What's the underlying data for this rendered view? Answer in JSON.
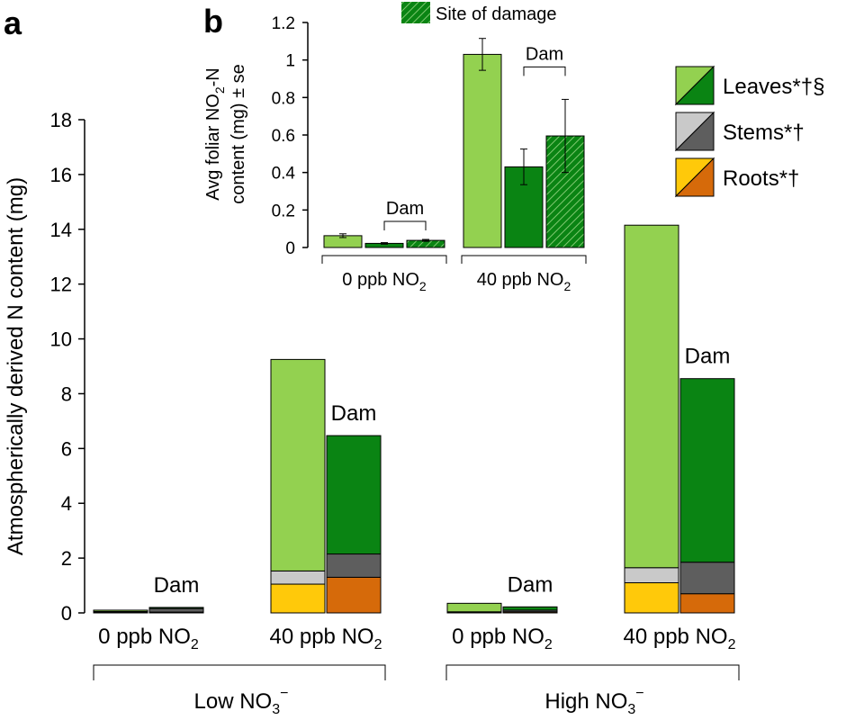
{
  "panel_a_label": "a",
  "panel_b_label": "b",
  "colors": {
    "leaves_undamaged": "#93d150",
    "leaves_damaged": "#0a8413",
    "stems_undamaged": "#c9c9c9",
    "stems_damaged": "#5e5e5e",
    "roots_undamaged": "#ffc90a",
    "roots_damaged": "#d66a0a"
  },
  "legend": {
    "leaves": "Leaves*†§",
    "stems": "Stems*†",
    "roots": "Roots*†",
    "site_of_damage": "Site of damage"
  },
  "chart_data": [
    {
      "id": "a",
      "type": "bar",
      "stacked": true,
      "ylabel": "Atmospherically derived N content (mg)",
      "ylim": [
        0,
        18
      ],
      "yticks": [
        0,
        2,
        4,
        6,
        8,
        10,
        12,
        14,
        16,
        18
      ],
      "stack_order": [
        "roots",
        "stems",
        "leaves"
      ],
      "groups": [
        {
          "label": "0 ppb NO",
          "sub": "2",
          "nitrate": "Low",
          "bars": [
            {
              "damaged": false,
              "roots": 0.02,
              "stems": 0.03,
              "leaves": 0.05
            },
            {
              "damaged": true,
              "roots": 0.03,
              "stems": 0.13,
              "leaves": 0.04,
              "annotation": "Dam"
            }
          ]
        },
        {
          "label": "40 ppb NO",
          "sub": "2",
          "nitrate": "Low",
          "bars": [
            {
              "damaged": false,
              "roots": 1.05,
              "stems": 0.48,
              "leaves": 7.72
            },
            {
              "damaged": true,
              "roots": 1.3,
              "stems": 0.85,
              "leaves": 4.32,
              "annotation": "Dam"
            }
          ]
        },
        {
          "label": "0 ppb NO",
          "sub": "2",
          "nitrate": "High",
          "bars": [
            {
              "damaged": false,
              "roots": 0.02,
              "stems": 0.02,
              "leaves": 0.31
            },
            {
              "damaged": true,
              "roots": 0.04,
              "stems": 0.06,
              "leaves": 0.12,
              "annotation": "Dam"
            }
          ]
        },
        {
          "label": "40 ppb NO",
          "sub": "2",
          "nitrate": "High",
          "bars": [
            {
              "damaged": false,
              "roots": 1.1,
              "stems": 0.55,
              "leaves": 12.5
            },
            {
              "damaged": true,
              "roots": 0.7,
              "stems": 1.15,
              "leaves": 6.7,
              "annotation": "Dam"
            }
          ]
        }
      ],
      "nitrate_groups": [
        {
          "label": "Low NO",
          "sub": "3",
          "sup": "−"
        },
        {
          "label": "High NO",
          "sub": "3",
          "sup": "−"
        }
      ]
    },
    {
      "id": "b",
      "type": "bar",
      "ylabel_line1": "Avg foliar NO",
      "ylabel_line1_sub": "2",
      "ylabel_line1_end": "-N",
      "ylabel_line2": "content (mg) ± se",
      "ylim": [
        0,
        1.2
      ],
      "yticks": [
        "0",
        "0.2",
        "0.4",
        "0.6",
        "0.8",
        "1",
        "1.2"
      ],
      "bracket_label": "Dam",
      "groups": [
        {
          "label": "0 ppb NO",
          "sub": "2",
          "bars": [
            {
              "type": "undamaged",
              "value": 0.063,
              "se": 0.01
            },
            {
              "type": "damaged",
              "value": 0.022,
              "se": 0.004
            },
            {
              "type": "site",
              "value": 0.038,
              "se": 0.005
            }
          ]
        },
        {
          "label": "40 ppb NO",
          "sub": "2",
          "bars": [
            {
              "type": "undamaged",
              "value": 1.03,
              "se": 0.085
            },
            {
              "type": "damaged",
              "value": 0.43,
              "se": 0.095
            },
            {
              "type": "site",
              "value": 0.595,
              "se": 0.195
            }
          ]
        }
      ]
    }
  ]
}
